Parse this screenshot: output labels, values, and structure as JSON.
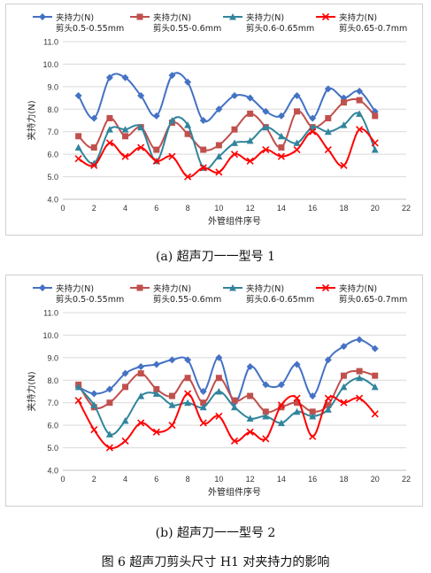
{
  "chart_data": [
    {
      "type": "line",
      "title": "",
      "xlabel": "外管组件序号",
      "ylabel": "夹持力(N)",
      "xlim": [
        0,
        22
      ],
      "ylim": [
        4.0,
        11.0
      ],
      "xticks": [
        0,
        2,
        4,
        6,
        8,
        10,
        12,
        14,
        16,
        18,
        20,
        22
      ],
      "yticks": [
        4.0,
        5.0,
        6.0,
        7.0,
        8.0,
        9.0,
        10.0,
        11.0
      ],
      "grid": true,
      "legend_position": "top",
      "x": [
        1,
        2,
        3,
        4,
        5,
        6,
        7,
        8,
        9,
        10,
        11,
        12,
        13,
        14,
        15,
        16,
        17,
        18,
        19,
        20
      ],
      "series": [
        {
          "name": "夹持力(N)",
          "sub": "剪头0.5-0.55mm",
          "color": "#4472C4",
          "marker": "diamond",
          "values": [
            8.6,
            7.6,
            9.4,
            9.4,
            8.6,
            7.7,
            9.5,
            9.2,
            7.5,
            8.0,
            8.6,
            8.5,
            7.9,
            7.7,
            8.6,
            7.6,
            8.9,
            8.5,
            8.8,
            7.9
          ]
        },
        {
          "name": "夹持力(N)",
          "sub": "剪头0.55-0.6mm",
          "color": "#C0504D",
          "marker": "square",
          "values": [
            6.8,
            6.3,
            7.6,
            6.8,
            7.2,
            6.2,
            7.4,
            6.9,
            6.2,
            6.4,
            7.1,
            7.8,
            7.2,
            6.3,
            7.9,
            7.2,
            7.6,
            8.3,
            8.4,
            7.7
          ]
        },
        {
          "name": "夹持力(N)",
          "sub": "剪头0.6-0.65mm",
          "color": "#31859C",
          "marker": "triangle",
          "values": [
            6.3,
            5.6,
            7.1,
            7.1,
            7.2,
            5.7,
            7.5,
            7.3,
            5.4,
            5.9,
            6.5,
            6.6,
            7.2,
            6.8,
            6.5,
            7.2,
            7.0,
            7.3,
            7.8,
            6.2
          ]
        },
        {
          "name": "夹持力(N)",
          "sub": "剪头0.65-0.7mm",
          "color": "#FF0000",
          "marker": "x",
          "values": [
            5.8,
            5.5,
            6.5,
            5.9,
            6.3,
            5.7,
            5.9,
            5.0,
            5.4,
            5.2,
            6.0,
            5.7,
            6.2,
            5.9,
            6.2,
            7.0,
            6.2,
            5.5,
            7.1,
            6.5
          ]
        }
      ]
    },
    {
      "type": "line",
      "title": "",
      "xlabel": "外管组件序号",
      "ylabel": "夹持力(N)",
      "xlim": [
        0,
        22
      ],
      "ylim": [
        4.0,
        11.0
      ],
      "xticks": [
        0,
        2,
        4,
        6,
        8,
        10,
        12,
        14,
        16,
        18,
        20,
        22
      ],
      "yticks": [
        4.0,
        5.0,
        6.0,
        7.0,
        8.0,
        9.0,
        10.0,
        11.0
      ],
      "grid": true,
      "legend_position": "top",
      "x": [
        1,
        2,
        3,
        4,
        5,
        6,
        7,
        8,
        9,
        10,
        11,
        12,
        13,
        14,
        15,
        16,
        17,
        18,
        19,
        20
      ],
      "series": [
        {
          "name": "夹持力(N)",
          "sub": "剪头0.5-0.55mm",
          "color": "#4472C4",
          "marker": "diamond",
          "values": [
            7.7,
            7.4,
            7.6,
            8.3,
            8.6,
            8.7,
            8.9,
            8.9,
            7.5,
            9.0,
            7.0,
            8.6,
            7.8,
            7.8,
            8.7,
            7.3,
            8.9,
            9.5,
            9.8,
            9.4
          ]
        },
        {
          "name": "夹持力(N)",
          "sub": "剪头0.55-0.6mm",
          "color": "#C0504D",
          "marker": "square",
          "values": [
            7.8,
            6.8,
            7.0,
            7.7,
            8.3,
            7.6,
            7.3,
            8.1,
            7.0,
            8.1,
            7.1,
            7.3,
            6.6,
            6.8,
            7.0,
            6.6,
            6.9,
            8.2,
            8.4,
            8.2
          ]
        },
        {
          "name": "夹持力(N)",
          "sub": "剪头0.6-0.65mm",
          "color": "#31859C",
          "marker": "triangle",
          "values": [
            7.7,
            6.9,
            5.6,
            6.2,
            7.3,
            7.4,
            6.9,
            7.0,
            6.8,
            7.5,
            6.8,
            6.3,
            6.4,
            6.1,
            6.6,
            6.4,
            6.7,
            7.7,
            8.1,
            7.7
          ]
        },
        {
          "name": "夹持力(N)",
          "sub": "剪头0.65-0.7mm",
          "color": "#FF0000",
          "marker": "x",
          "values": [
            7.1,
            5.8,
            5.0,
            5.3,
            6.1,
            5.7,
            6.0,
            7.4,
            6.1,
            6.4,
            5.3,
            5.7,
            5.4,
            6.9,
            7.2,
            5.5,
            7.2,
            7.0,
            7.2,
            6.5
          ]
        }
      ]
    }
  ],
  "captions": {
    "a": "(a)  超声刀一一型号 1",
    "b": "(b)  超声刀一一型号 2",
    "figure": "图 6  超声刀剪头尺寸 H1 对夹持力的影响"
  }
}
